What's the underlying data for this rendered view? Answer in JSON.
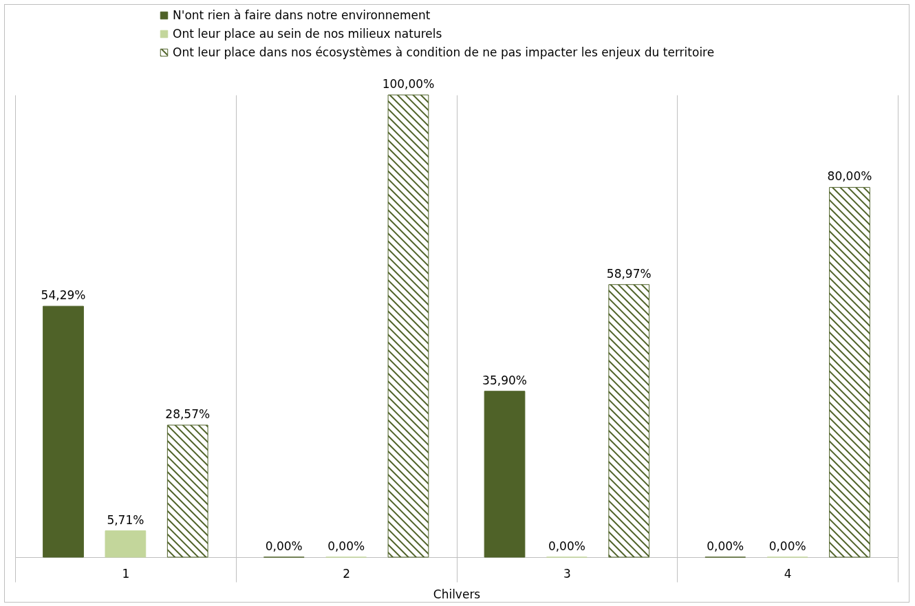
{
  "chart_data": {
    "type": "bar",
    "xlabel": "Chilvers",
    "categories": [
      "1",
      "2",
      "3",
      "4"
    ],
    "legend": "top",
    "grid": "x",
    "series": [
      {
        "name": "N'ont rien à faire dans notre environnement",
        "color": "#4f6228",
        "values": [
          54.29,
          0,
          35.9,
          0
        ],
        "value_labels": [
          "54,29%",
          "0,00%",
          "35,90%",
          "0,00%"
        ]
      },
      {
        "name": "Ont leur place au sein de nos milieux naturels",
        "color": "#c3d69b",
        "values": [
          5.71,
          0,
          0,
          0
        ],
        "value_labels": [
          "5,71%",
          "0,00%",
          "0,00%",
          "0,00%"
        ]
      },
      {
        "name": "Ont leur place dans nos écosystèmes à condition de ne pas impacter les enjeux du territoire",
        "color": "#4f6228",
        "values": [
          28.57,
          100,
          58.97,
          80
        ],
        "value_labels": [
          "28,57%",
          "100,00%",
          "58,97%",
          "80,00%"
        ]
      }
    ]
  }
}
